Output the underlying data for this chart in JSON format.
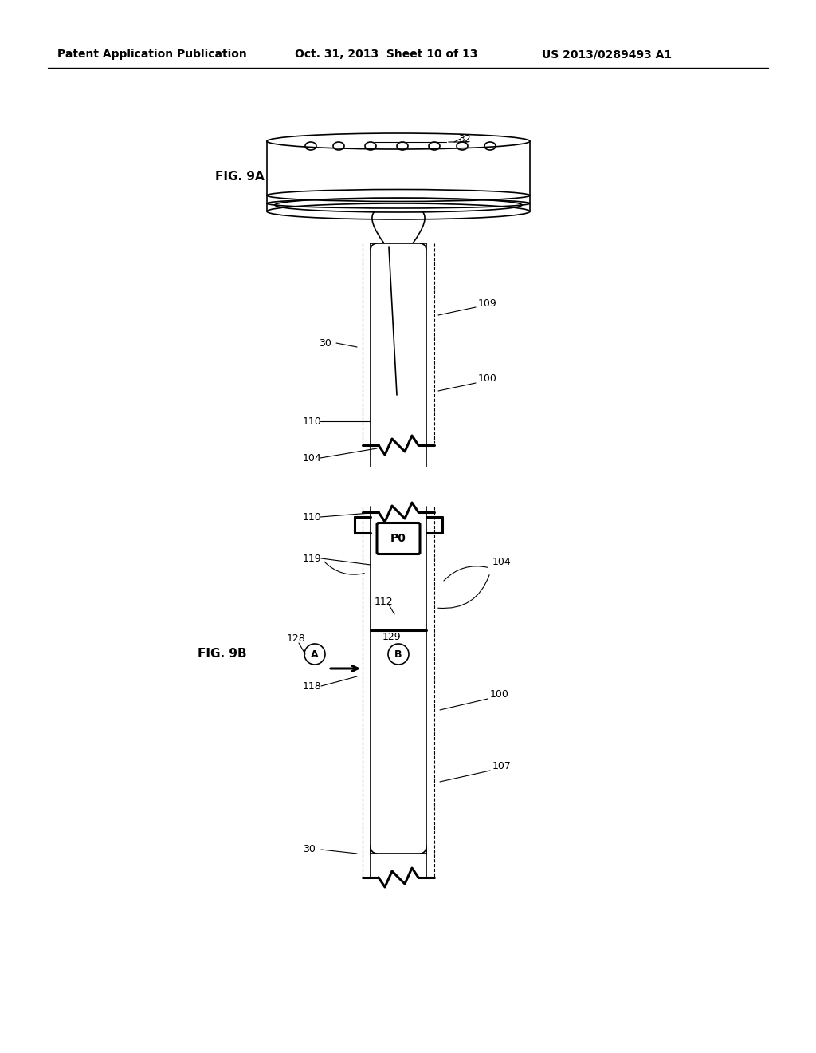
{
  "bg_color": "#ffffff",
  "header_left": "Patent Application Publication",
  "header_mid": "Oct. 31, 2013  Sheet 10 of 13",
  "header_right": "US 2013/0289493 A1",
  "fig9a_label": "FIG. 9A",
  "fig9b_label": "FIG. 9B",
  "label_32": "32",
  "label_30_a": "30",
  "label_109": "109",
  "label_100_a": "100",
  "label_110_a": "110",
  "label_104_a": "104",
  "label_110_b": "110",
  "label_119": "119",
  "label_104_b": "104",
  "label_112": "112",
  "label_128": "128",
  "label_129": "129",
  "label_118": "118",
  "label_100_b": "100",
  "label_107": "107",
  "label_30_b": "30",
  "line_color": "#000000",
  "lw_thin": 0.8,
  "lw_med": 1.2,
  "lw_thick": 2.2
}
